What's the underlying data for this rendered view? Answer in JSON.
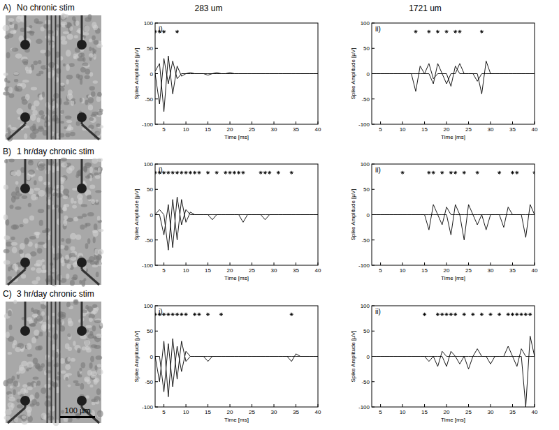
{
  "figure": {
    "columns": [
      "283 um",
      "1721 um"
    ],
    "rows": [
      {
        "label": "A)",
        "title": "No chronic stim"
      },
      {
        "label": "B)",
        "title": "1 hr/day chronic stim"
      },
      {
        "label": "C)",
        "title": "3 hr/day chronic stim"
      }
    ],
    "scale_bar": {
      "label": "100 µm"
    }
  },
  "chart_data": [
    {
      "type": "line",
      "title": "i)",
      "x_label": "Time [ms]",
      "y_label": "Spike Amplitude [µV]",
      "x": [
        3,
        4,
        5,
        6,
        7,
        8,
        9,
        10,
        11,
        12,
        13,
        14,
        15,
        16,
        17,
        18,
        19,
        20,
        21,
        22,
        23,
        24,
        25,
        26,
        27,
        28,
        29,
        30,
        31,
        32,
        33,
        34,
        35,
        36,
        37,
        38,
        39,
        40
      ],
      "xlim": [
        3,
        40
      ],
      "xticks": [
        5,
        10,
        15,
        20,
        25,
        30,
        35,
        40
      ],
      "ylim": [
        -100,
        100
      ],
      "yticks": [
        -100,
        -50,
        0,
        50,
        100
      ],
      "series": [
        {
          "color": "#000000",
          "values": [
            0,
            -60,
            30,
            -20,
            25,
            -10,
            0,
            0,
            2,
            0,
            0,
            0,
            -3,
            0,
            0,
            0,
            0,
            2,
            0,
            0,
            0,
            0,
            0,
            0,
            0,
            0,
            0,
            0,
            0,
            0,
            0,
            0,
            0,
            0,
            0,
            0,
            0,
            0
          ]
        },
        {
          "color": "#000000",
          "values": [
            5,
            20,
            -75,
            35,
            -40,
            15,
            -5,
            0,
            0,
            0,
            0,
            0,
            0,
            0,
            2,
            0,
            0,
            0,
            0,
            0,
            0,
            0,
            0,
            0,
            0,
            0,
            0,
            0,
            0,
            0,
            0,
            0,
            0,
            0,
            0,
            0,
            0,
            0
          ]
        },
        {
          "type": "scatter",
          "marker": "star",
          "color": "#000000",
          "values": [
            83,
            83,
            83,
            null,
            null,
            83,
            null,
            null,
            null,
            null,
            null,
            null,
            null,
            null,
            null,
            null,
            null,
            null,
            null,
            null,
            null,
            null,
            null,
            null,
            null,
            null,
            null,
            null,
            null,
            null,
            null,
            null,
            null,
            null,
            null,
            null,
            null,
            null
          ]
        }
      ]
    },
    {
      "type": "line",
      "title": "ii)",
      "x_label": "Time [ms]",
      "y_label": "Spike Amplitude [µV]",
      "x": [
        3,
        4,
        5,
        6,
        7,
        8,
        9,
        10,
        11,
        12,
        13,
        14,
        15,
        16,
        17,
        18,
        19,
        20,
        21,
        22,
        23,
        24,
        25,
        26,
        27,
        28,
        29,
        30,
        31,
        32,
        33,
        34,
        35,
        36,
        37,
        38,
        39,
        40
      ],
      "xlim": [
        3,
        40
      ],
      "xticks": [
        5,
        10,
        15,
        20,
        25,
        30,
        35,
        40
      ],
      "ylim": [
        -100,
        100
      ],
      "yticks": [
        -100,
        -50,
        0,
        50,
        100
      ],
      "series": [
        {
          "color": "#000000",
          "values": [
            0,
            0,
            0,
            0,
            0,
            0,
            0,
            0,
            0,
            0,
            -35,
            15,
            0,
            0,
            -20,
            20,
            0,
            0,
            -25,
            15,
            0,
            0,
            0,
            0,
            0,
            -40,
            25,
            0,
            0,
            0,
            0,
            0,
            0,
            0,
            0,
            0,
            0,
            0
          ]
        },
        {
          "color": "#000000",
          "values": [
            0,
            0,
            0,
            0,
            0,
            0,
            0,
            0,
            0,
            0,
            0,
            0,
            0,
            20,
            -10,
            0,
            0,
            -20,
            0,
            0,
            20,
            0,
            0,
            0,
            -15,
            0,
            0,
            0,
            0,
            0,
            0,
            0,
            0,
            0,
            0,
            0,
            0,
            0
          ]
        },
        {
          "type": "scatter",
          "marker": "star",
          "color": "#000000",
          "values": [
            null,
            null,
            null,
            null,
            null,
            null,
            null,
            null,
            null,
            null,
            83,
            null,
            null,
            83,
            null,
            83,
            null,
            83,
            null,
            83,
            83,
            null,
            null,
            null,
            null,
            83,
            null,
            null,
            null,
            null,
            null,
            null,
            null,
            null,
            null,
            null,
            null,
            null
          ]
        }
      ]
    },
    {
      "type": "line",
      "title": "i)",
      "x_label": "Time [ms]",
      "y_label": "Spike Amplitude [µV]",
      "x": [
        3,
        4,
        5,
        6,
        7,
        8,
        9,
        10,
        11,
        12,
        13,
        14,
        15,
        16,
        17,
        18,
        19,
        20,
        21,
        22,
        23,
        24,
        25,
        26,
        27,
        28,
        29,
        30,
        31,
        32,
        33,
        34,
        35,
        36,
        37,
        38,
        39,
        40
      ],
      "xlim": [
        3,
        40
      ],
      "xticks": [
        5,
        10,
        15,
        20,
        25,
        30,
        35,
        40
      ],
      "ylim": [
        -100,
        100
      ],
      "yticks": [
        -100,
        -50,
        0,
        50,
        100
      ],
      "series": [
        {
          "color": "#000000",
          "values": [
            0,
            0,
            -40,
            20,
            -65,
            35,
            -20,
            10,
            0,
            0,
            0,
            0,
            0,
            -10,
            0,
            0,
            0,
            0,
            0,
            0,
            -15,
            0,
            0,
            0,
            0,
            -10,
            0,
            0,
            0,
            0,
            0,
            0,
            0,
            0,
            0,
            0,
            0,
            0
          ]
        },
        {
          "color": "#000000",
          "values": [
            0,
            10,
            0,
            -70,
            30,
            -50,
            30,
            -15,
            5,
            0,
            0,
            0,
            0,
            0,
            0,
            0,
            0,
            0,
            0,
            0,
            0,
            0,
            0,
            0,
            0,
            0,
            0,
            0,
            0,
            0,
            0,
            0,
            0,
            0,
            0,
            0,
            0,
            0
          ]
        },
        {
          "type": "scatter",
          "marker": "star",
          "color": "#000000",
          "values": [
            83,
            83,
            83,
            83,
            83,
            83,
            83,
            83,
            83,
            83,
            83,
            null,
            83,
            null,
            83,
            null,
            83,
            83,
            83,
            83,
            83,
            null,
            null,
            null,
            83,
            83,
            83,
            null,
            83,
            null,
            null,
            83,
            null,
            null,
            null,
            null,
            null,
            null
          ]
        }
      ]
    },
    {
      "type": "line",
      "title": "ii)",
      "x_label": "Time [ms]",
      "y_label": "Spike Amplitude [µV]",
      "x": [
        3,
        4,
        5,
        6,
        7,
        8,
        9,
        10,
        11,
        12,
        13,
        14,
        15,
        16,
        17,
        18,
        19,
        20,
        21,
        22,
        23,
        24,
        25,
        26,
        27,
        28,
        29,
        30,
        31,
        32,
        33,
        34,
        35,
        36,
        37,
        38,
        39,
        40
      ],
      "xlim": [
        3,
        40
      ],
      "xticks": [
        5,
        10,
        15,
        20,
        25,
        30,
        35,
        40
      ],
      "ylim": [
        -100,
        100
      ],
      "yticks": [
        -100,
        -50,
        0,
        50,
        100
      ],
      "series": [
        {
          "color": "#000000",
          "values": [
            0,
            0,
            0,
            0,
            0,
            0,
            0,
            0,
            0,
            0,
            0,
            0,
            0,
            -30,
            20,
            0,
            -20,
            15,
            0,
            0,
            0,
            -50,
            20,
            0,
            0,
            0,
            -30,
            0,
            0,
            0,
            0,
            0,
            0,
            0,
            0,
            0,
            0,
            0
          ]
        },
        {
          "color": "#000000",
          "values": [
            0,
            0,
            0,
            0,
            0,
            0,
            0,
            0,
            0,
            0,
            0,
            0,
            0,
            0,
            0,
            0,
            0,
            0,
            -40,
            20,
            0,
            0,
            0,
            0,
            -20,
            0,
            0,
            0,
            0,
            0,
            -25,
            15,
            0,
            0,
            0,
            -45,
            20,
            0
          ]
        },
        {
          "type": "scatter",
          "marker": "star",
          "color": "#000000",
          "values": [
            null,
            null,
            null,
            null,
            null,
            null,
            null,
            83,
            null,
            null,
            null,
            null,
            null,
            83,
            83,
            null,
            83,
            null,
            83,
            83,
            null,
            83,
            null,
            null,
            83,
            null,
            null,
            null,
            null,
            83,
            null,
            null,
            83,
            83,
            null,
            null,
            null,
            83
          ]
        }
      ]
    },
    {
      "type": "line",
      "title": "i)",
      "x_label": "Time [ms]",
      "y_label": "Spike Amplitude [µV]",
      "x": [
        3,
        4,
        5,
        6,
        7,
        8,
        9,
        10,
        11,
        12,
        13,
        14,
        15,
        16,
        17,
        18,
        19,
        20,
        21,
        22,
        23,
        24,
        25,
        26,
        27,
        28,
        29,
        30,
        31,
        32,
        33,
        34,
        35,
        36,
        37,
        38,
        39,
        40
      ],
      "xlim": [
        3,
        40
      ],
      "xticks": [
        5,
        10,
        15,
        20,
        25,
        30,
        35,
        40
      ],
      "ylim": [
        -100,
        100
      ],
      "yticks": [
        -100,
        -50,
        0,
        50,
        100
      ],
      "series": [
        {
          "color": "#000000",
          "values": [
            0,
            -50,
            30,
            -80,
            35,
            -45,
            30,
            -10,
            0,
            0,
            0,
            0,
            0,
            0,
            0,
            0,
            0,
            0,
            0,
            0,
            0,
            0,
            0,
            0,
            0,
            0,
            0,
            0,
            0,
            0,
            0,
            0,
            0,
            0,
            0,
            0,
            0,
            0
          ]
        },
        {
          "color": "#000000",
          "values": [
            0,
            0,
            -70,
            25,
            -60,
            20,
            -30,
            10,
            0,
            0,
            0,
            0,
            -10,
            0,
            0,
            0,
            0,
            0,
            0,
            0,
            0,
            0,
            0,
            0,
            0,
            0,
            0,
            0,
            0,
            0,
            0,
            -10,
            5,
            0,
            0,
            0,
            0,
            0
          ]
        },
        {
          "type": "scatter",
          "marker": "star",
          "color": "#000000",
          "values": [
            83,
            83,
            83,
            83,
            83,
            83,
            83,
            83,
            null,
            83,
            83,
            null,
            83,
            null,
            null,
            83,
            null,
            null,
            null,
            null,
            null,
            null,
            null,
            null,
            null,
            null,
            null,
            null,
            null,
            null,
            null,
            83,
            null,
            null,
            null,
            null,
            null,
            null
          ]
        }
      ]
    },
    {
      "type": "line",
      "title": "ii)",
      "x_label": "Time [ms]",
      "y_label": "Spike Amplitude [µV]",
      "x": [
        3,
        4,
        5,
        6,
        7,
        8,
        9,
        10,
        11,
        12,
        13,
        14,
        15,
        16,
        17,
        18,
        19,
        20,
        21,
        22,
        23,
        24,
        25,
        26,
        27,
        28,
        29,
        30,
        31,
        32,
        33,
        34,
        35,
        36,
        37,
        38,
        39,
        40
      ],
      "xlim": [
        3,
        40
      ],
      "xticks": [
        5,
        10,
        15,
        20,
        25,
        30,
        35,
        40
      ],
      "ylim": [
        -100,
        100
      ],
      "yticks": [
        -100,
        -50,
        0,
        50,
        100
      ],
      "series": [
        {
          "color": "#000000",
          "values": [
            0,
            0,
            0,
            0,
            0,
            0,
            0,
            0,
            0,
            0,
            0,
            0,
            0,
            0,
            0,
            -20,
            10,
            0,
            0,
            0,
            -15,
            0,
            -25,
            0,
            15,
            0,
            0,
            0,
            0,
            0,
            0,
            0,
            0,
            0,
            0,
            -100,
            40,
            0
          ]
        },
        {
          "color": "#000000",
          "values": [
            0,
            0,
            0,
            0,
            0,
            0,
            0,
            0,
            0,
            0,
            0,
            0,
            0,
            -10,
            0,
            0,
            0,
            -20,
            10,
            0,
            0,
            0,
            0,
            0,
            0,
            0,
            0,
            -15,
            0,
            0,
            0,
            20,
            0,
            -20,
            15,
            0,
            0,
            0
          ]
        },
        {
          "type": "scatter",
          "marker": "star",
          "color": "#000000",
          "values": [
            null,
            null,
            null,
            null,
            null,
            null,
            null,
            null,
            null,
            null,
            null,
            null,
            83,
            null,
            null,
            83,
            83,
            83,
            83,
            83,
            null,
            83,
            null,
            83,
            null,
            83,
            null,
            83,
            null,
            83,
            null,
            83,
            83,
            83,
            83,
            83,
            83,
            null
          ]
        }
      ]
    }
  ]
}
